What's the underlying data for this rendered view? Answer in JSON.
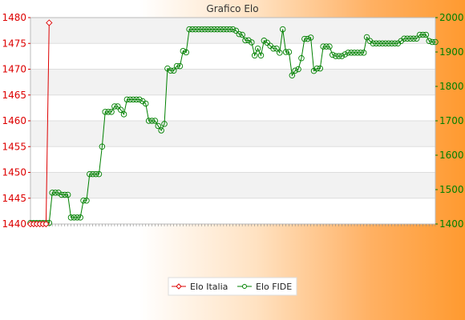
{
  "chart_data": {
    "type": "line",
    "title": "Grafico Elo",
    "y_left": {
      "ylim": [
        1440,
        1480
      ],
      "ticks": [
        1440,
        1445,
        1450,
        1455,
        1460,
        1465,
        1470,
        1475,
        1480
      ],
      "color": "#dd0000"
    },
    "y_right": {
      "ylim": [
        1400,
        2000
      ],
      "ticks": [
        1400,
        1500,
        1600,
        1700,
        1800,
        1900,
        2000
      ],
      "color": "#008000"
    },
    "grid": true,
    "legend_position": "bottom-center",
    "series": [
      {
        "name": "Elo Italia",
        "axis": "left",
        "color": "#dd0000",
        "marker": "diamond",
        "values": [
          1440,
          1440,
          1440,
          1440,
          1440,
          1440,
          1479
        ]
      },
      {
        "name": "Elo FIDE",
        "axis": "right",
        "color": "#008000",
        "marker": "circle",
        "values": [
          1403,
          1403,
          1403,
          1403,
          1403,
          1403,
          1403,
          1491,
          1491,
          1491,
          1485,
          1485,
          1485,
          1419,
          1419,
          1419,
          1419,
          1468,
          1468,
          1545,
          1545,
          1545,
          1545,
          1625,
          1726,
          1726,
          1726,
          1742,
          1742,
          1732,
          1719,
          1762,
          1762,
          1762,
          1762,
          1762,
          1757,
          1750,
          1700,
          1700,
          1700,
          1685,
          1672,
          1691,
          1852,
          1846,
          1846,
          1859,
          1859,
          1903,
          1899,
          1966,
          1966,
          1966,
          1966,
          1966,
          1966,
          1966,
          1966,
          1966,
          1966,
          1966,
          1966,
          1966,
          1966,
          1966,
          1962,
          1952,
          1950,
          1934,
          1934,
          1928,
          1890,
          1910,
          1890,
          1933,
          1927,
          1918,
          1910,
          1910,
          1898,
          1966,
          1900,
          1900,
          1832,
          1846,
          1850,
          1882,
          1938,
          1938,
          1942,
          1845,
          1852,
          1852,
          1916,
          1916,
          1916,
          1892,
          1888,
          1888,
          1888,
          1893,
          1898,
          1898,
          1898,
          1898,
          1898,
          1898,
          1943,
          1932,
          1925,
          1925,
          1925,
          1925,
          1925,
          1925,
          1925,
          1925,
          1925,
          1932,
          1939,
          1939,
          1939,
          1939,
          1939,
          1950,
          1950,
          1950,
          1932,
          1929,
          1929
        ]
      }
    ]
  },
  "legend": {
    "italia_label": "Elo Italia",
    "fide_label": "Elo FIDE"
  }
}
